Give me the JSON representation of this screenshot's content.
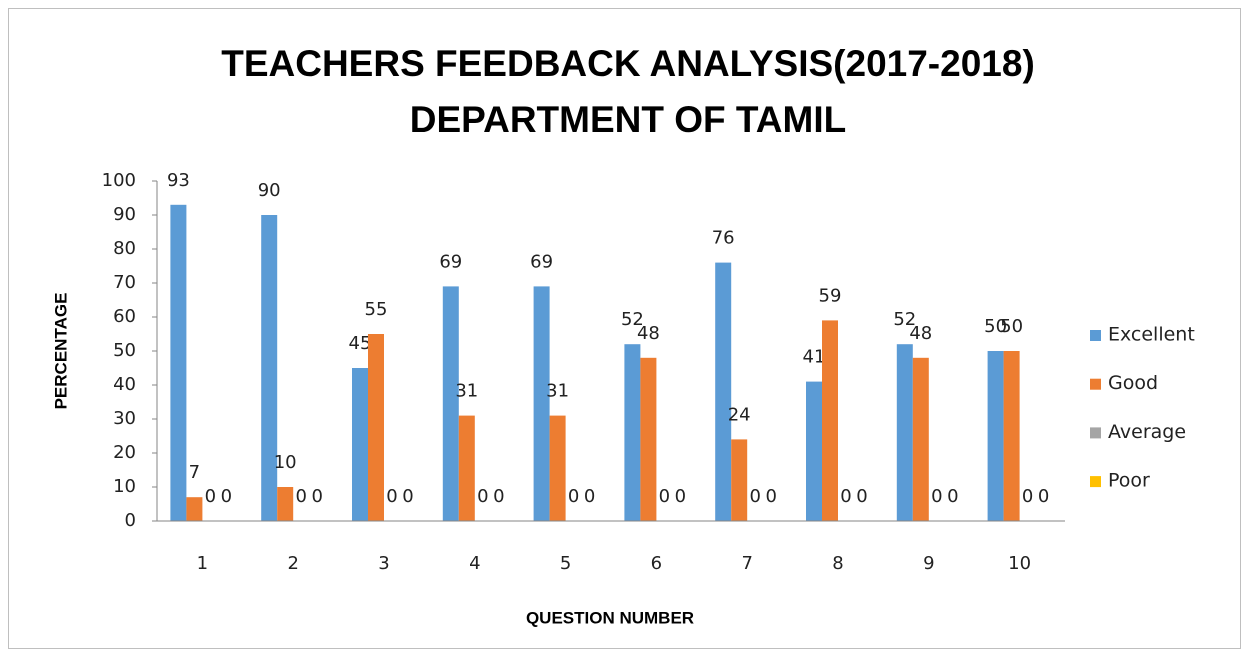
{
  "chart_data": {
    "type": "bar",
    "title": [
      "TEACHERS FEEDBACK ANALYSIS(2017-2018)",
      "DEPARTMENT OF TAMIL"
    ],
    "x_label": "QUESTION NUMBER",
    "y_label": "PERCENTAGE",
    "categories": [
      "1",
      "2",
      "3",
      "4",
      "5",
      "6",
      "7",
      "8",
      "9",
      "10"
    ],
    "series": [
      {
        "name": "Excellent",
        "color": "#5b9bd5",
        "values": [
          93,
          90,
          45,
          69,
          69,
          52,
          76,
          41,
          52,
          50
        ]
      },
      {
        "name": "Good",
        "color": "#ed7d31",
        "values": [
          7,
          10,
          55,
          31,
          31,
          48,
          24,
          59,
          48,
          50
        ]
      },
      {
        "name": "Average",
        "color": "#a5a5a5",
        "values": [
          0,
          0,
          0,
          0,
          0,
          0,
          0,
          0,
          0,
          0
        ]
      },
      {
        "name": "Poor",
        "color": "#ffc000",
        "values": [
          0,
          0,
          0,
          0,
          0,
          0,
          0,
          0,
          0,
          0
        ]
      }
    ],
    "ylim": [
      0,
      100
    ],
    "yticks": [
      0,
      10,
      20,
      30,
      40,
      50,
      60,
      70,
      80,
      90,
      100
    ],
    "grid": false,
    "legend": "right"
  }
}
